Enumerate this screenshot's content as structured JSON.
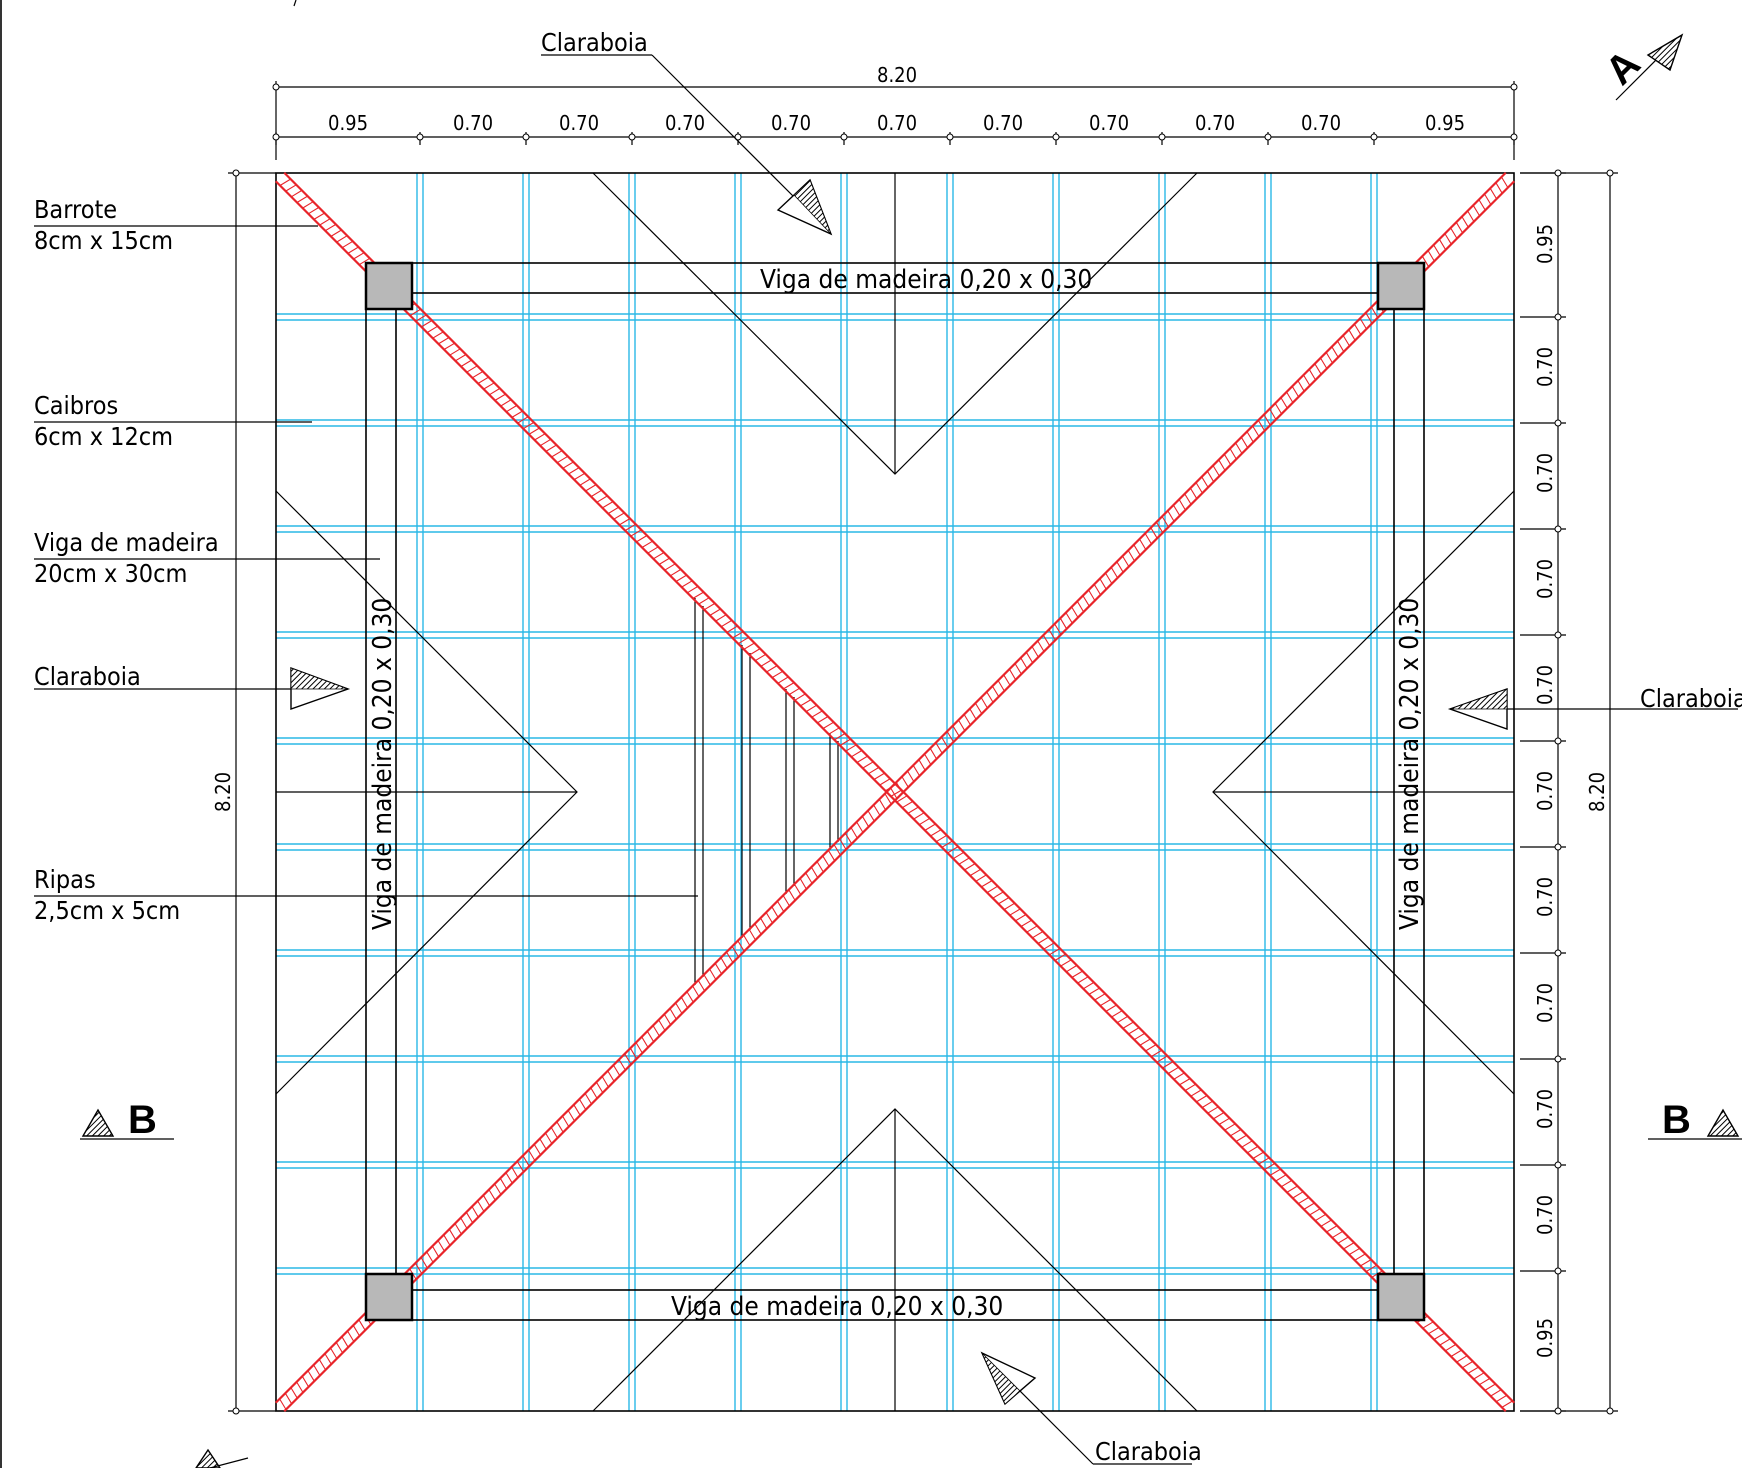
{
  "plan": {
    "overall_width": "8.20",
    "overall_height": "8.20",
    "top_dimensions": [
      "0.95",
      "0.70",
      "0.70",
      "0.70",
      "0.70",
      "0.70",
      "0.70",
      "0.70",
      "0.70",
      "0.70",
      "0.95"
    ],
    "right_dimensions": [
      "0.95",
      "0.70",
      "0.70",
      "0.70",
      "0.70",
      "0.70",
      "0.70",
      "0.70",
      "0.70",
      "0.70",
      "0.95"
    ]
  },
  "callouts": {
    "barrote": {
      "name": "Barrote",
      "size": "8cm  x  15cm"
    },
    "caibros": {
      "name": "Caibros",
      "size": "6cm  x  12cm"
    },
    "viga": {
      "name": "Viga de madeira",
      "size": "20cm  x  30cm"
    },
    "ripas": {
      "name": "Ripas",
      "size": "2,5cm  x  5cm"
    },
    "claraboia_top": "Claraboia",
    "claraboia_left": "Claraboia",
    "claraboia_right": "Claraboia",
    "claraboia_bottom": "Claraboia"
  },
  "beams": {
    "top": "Viga  de  madeira  0,20  x  0,30",
    "bottom": "Viga  de  madeira  0,20  x  0,30",
    "left": "Viga  de  madeira  0,20  x  0,30",
    "right": "Viga  de  madeira  0,20  x  0,30"
  },
  "sections": {
    "a": "A",
    "b_left": "B",
    "b_right": "B"
  },
  "colors": {
    "rafters": "#2ab8e6",
    "hip_beams": "#e8242a",
    "posts": "#b8b8b8",
    "lines": "#000000"
  }
}
